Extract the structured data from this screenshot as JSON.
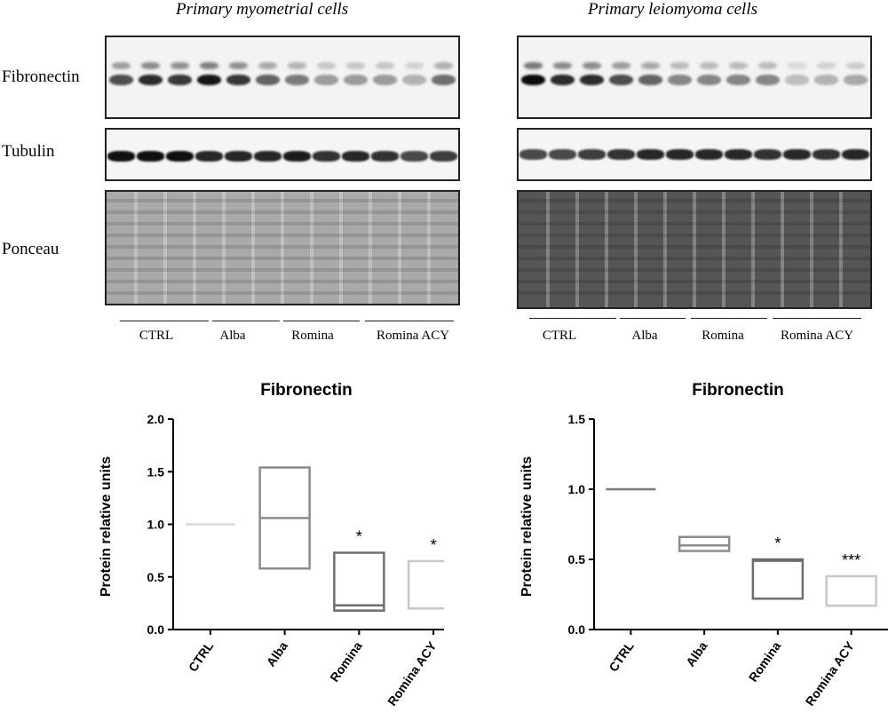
{
  "blots": [
    {
      "title": "Primary myometrial cells",
      "row_labels": {
        "fibronectin": "Fibronectin",
        "tubulin": "Tubulin",
        "ponceau": "Ponceau"
      },
      "groups": [
        "CTRL",
        "Alba",
        "Romina",
        "Romina ACY"
      ],
      "lanes": 12,
      "fibronectin_intensity": [
        0.7,
        0.85,
        0.8,
        0.95,
        0.8,
        0.6,
        0.5,
        0.35,
        0.35,
        0.35,
        0.25,
        0.55
      ],
      "tubulin_intensity": [
        0.95,
        0.95,
        0.95,
        0.85,
        0.85,
        0.85,
        0.9,
        0.8,
        0.85,
        0.8,
        0.7,
        0.75
      ],
      "ponceau_shade": "#a9a9a9"
    },
    {
      "title": "Primary leiomyoma cells",
      "row_labels": {
        "fibronectin": "",
        "tubulin": "",
        "ponceau": ""
      },
      "groups": [
        "CTRL",
        "Alba",
        "Romina",
        "Romina ACY"
      ],
      "lanes": 12,
      "fibronectin_intensity": [
        1.0,
        0.85,
        0.85,
        0.7,
        0.6,
        0.45,
        0.45,
        0.45,
        0.45,
        0.2,
        0.25,
        0.3
      ],
      "tubulin_intensity": [
        0.7,
        0.7,
        0.75,
        0.8,
        0.85,
        0.85,
        0.85,
        0.85,
        0.8,
        0.85,
        0.8,
        0.85
      ],
      "ponceau_shade": "#555555"
    }
  ],
  "chart_data": [
    {
      "type": "box",
      "title": "Fibronectin",
      "xlabel": "",
      "ylabel": "Protein relative units",
      "ylim": [
        0,
        2.0
      ],
      "yticks": [
        "0.0",
        "0.5",
        "1.0",
        "1.5",
        "2.0"
      ],
      "categories": [
        "CTRL",
        "Alba",
        "Romina",
        "Romina ACY"
      ],
      "boxes": [
        {
          "category": "CTRL",
          "min": 1.0,
          "median": 1.0,
          "max": 1.0,
          "color": "#d9d9d9",
          "annotation": ""
        },
        {
          "category": "Alba",
          "min": 0.58,
          "median": 1.06,
          "max": 1.54,
          "color": "#8c8c8c",
          "annotation": ""
        },
        {
          "category": "Romina",
          "min": 0.18,
          "median": 0.23,
          "max": 0.73,
          "color": "#6e6e6e",
          "annotation": "*"
        },
        {
          "category": "Romina ACY",
          "min": 0.2,
          "median": 0.2,
          "max": 0.65,
          "color": "#c8c8c8",
          "annotation": "*"
        }
      ]
    },
    {
      "type": "box",
      "title": "Fibronectin",
      "xlabel": "",
      "ylabel": "Protein relative units",
      "ylim": [
        0,
        1.5
      ],
      "yticks": [
        "0.0",
        "0.5",
        "1.0",
        "1.5"
      ],
      "categories": [
        "CTRL",
        "Alba",
        "Romina",
        "Romina ACY"
      ],
      "boxes": [
        {
          "category": "CTRL",
          "min": 1.0,
          "median": 1.0,
          "max": 1.0,
          "color": "#7a7a7a",
          "annotation": ""
        },
        {
          "category": "Alba",
          "min": 0.56,
          "median": 0.6,
          "max": 0.66,
          "color": "#8c8c8c",
          "annotation": ""
        },
        {
          "category": "Romina",
          "min": 0.22,
          "median": 0.49,
          "max": 0.5,
          "color": "#6e6e6e",
          "annotation": "*"
        },
        {
          "category": "Romina ACY",
          "min": 0.17,
          "median": 0.17,
          "max": 0.38,
          "color": "#c8c8c8",
          "annotation": "***"
        }
      ]
    }
  ]
}
